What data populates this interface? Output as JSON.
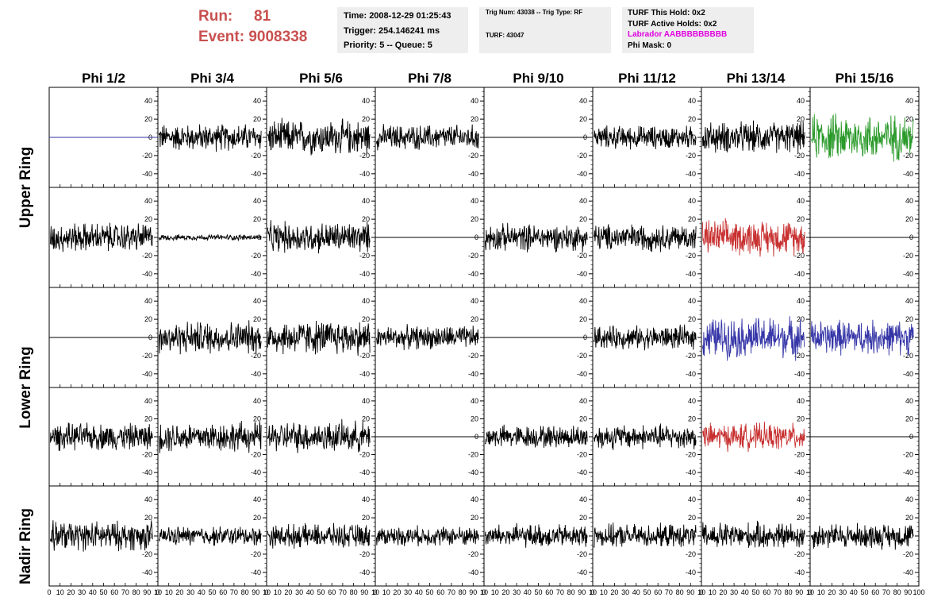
{
  "header": {
    "run_label": "Run:",
    "run_value": "81",
    "event_label": "Event:",
    "event_value": "9008338",
    "time": "Time: 2008-12-29 01:25:43",
    "trigger": "Trigger: 254.146241 ms",
    "priority": "Priority: 5 -- Queue: 5",
    "trig_num": "Trig Num: 43038 -- Trig Type: RF",
    "turf": "TURF: 43047",
    "turf_this_hold": "TURF This Hold: 0x2",
    "turf_active_holds": "TURF Active Holds: 0x2",
    "labrador": "Labrador AABBBBBBBBB",
    "phi_mask": "Phi Mask: 0"
  },
  "colors": {
    "run_text": "#c8504f",
    "labrador_text": "#e000e0",
    "info_bg": "#eeeeee",
    "blue_flat": "#3030a0",
    "green": "#2a9a2a",
    "red": "#c83030",
    "blue": "#3535a8"
  },
  "chart_data": {
    "type": "line",
    "columns": [
      "Phi 1/2",
      "Phi 3/4",
      "Phi 5/6",
      "Phi 7/8",
      "Phi 9/10",
      "Phi 11/12",
      "Phi 13/14",
      "Phi 15/16"
    ],
    "ring_labels": [
      "Upper Ring",
      "Lower Ring",
      "Nadir Ring"
    ],
    "rows": 5,
    "xlim": [
      0,
      100
    ],
    "ylim": [
      -55,
      55
    ],
    "x_ticks": [
      0,
      10,
      20,
      30,
      40,
      50,
      60,
      70,
      80,
      90,
      100
    ],
    "x_tick_labels_per_panel": [
      "0",
      "10",
      "20",
      "30",
      "40",
      "50",
      "60",
      "70",
      "80",
      "90",
      "10"
    ],
    "x_tick_labels_last_panel": [
      "0",
      "10",
      "20",
      "30",
      "40",
      "50",
      "60",
      "70",
      "80",
      "90",
      "100"
    ],
    "y_ticks": [
      -40,
      -20,
      0,
      20,
      40
    ],
    "panels": [
      [
        {
          "style": "flat",
          "color": "blue_flat",
          "amp": 0
        },
        {
          "style": "noise",
          "color": "black",
          "amp": 14
        },
        {
          "style": "noise",
          "color": "black",
          "amp": 18
        },
        {
          "style": "noise",
          "color": "black",
          "amp": 13
        },
        {
          "style": "flat",
          "color": "black",
          "amp": 0
        },
        {
          "style": "noise",
          "color": "black",
          "amp": 12
        },
        {
          "style": "noise",
          "color": "black",
          "amp": 16
        },
        {
          "style": "noise",
          "color": "green",
          "amp": 24
        }
      ],
      [
        {
          "style": "noise",
          "color": "black",
          "amp": 15
        },
        {
          "style": "noise",
          "color": "black",
          "amp": 3
        },
        {
          "style": "noise",
          "color": "black",
          "amp": 16
        },
        {
          "style": "flat",
          "color": "black",
          "amp": 0
        },
        {
          "style": "noise",
          "color": "black",
          "amp": 14
        },
        {
          "style": "noise",
          "color": "black",
          "amp": 14
        },
        {
          "style": "noise",
          "color": "red",
          "amp": 18
        },
        {
          "style": "flat",
          "color": "black",
          "amp": 0
        }
      ],
      [
        {
          "style": "flat",
          "color": "black",
          "amp": 0
        },
        {
          "style": "noise",
          "color": "black",
          "amp": 17
        },
        {
          "style": "noise",
          "color": "black",
          "amp": 18
        },
        {
          "style": "noise",
          "color": "black",
          "amp": 12
        },
        {
          "style": "flat",
          "color": "black",
          "amp": 0
        },
        {
          "style": "noise",
          "color": "black",
          "amp": 12
        },
        {
          "style": "noise",
          "color": "blue",
          "amp": 21
        },
        {
          "style": "noise",
          "color": "blue",
          "amp": 18
        }
      ],
      [
        {
          "style": "noise",
          "color": "black",
          "amp": 14
        },
        {
          "style": "noise",
          "color": "black",
          "amp": 16
        },
        {
          "style": "noise",
          "color": "black",
          "amp": 16
        },
        {
          "style": "flat",
          "color": "black",
          "amp": 0
        },
        {
          "style": "noise",
          "color": "black",
          "amp": 12
        },
        {
          "style": "noise",
          "color": "black",
          "amp": 13
        },
        {
          "style": "noise",
          "color": "red",
          "amp": 14
        },
        {
          "style": "flat",
          "color": "black",
          "amp": 0
        }
      ],
      [
        {
          "style": "noise",
          "color": "black",
          "amp": 15
        },
        {
          "style": "noise",
          "color": "black",
          "amp": 10
        },
        {
          "style": "noise",
          "color": "black",
          "amp": 12
        },
        {
          "style": "noise",
          "color": "black",
          "amp": 10
        },
        {
          "style": "noise",
          "color": "black",
          "amp": 12
        },
        {
          "style": "noise",
          "color": "black",
          "amp": 12
        },
        {
          "style": "noise",
          "color": "black",
          "amp": 14
        },
        {
          "style": "noise",
          "color": "black",
          "amp": 13
        }
      ]
    ]
  }
}
